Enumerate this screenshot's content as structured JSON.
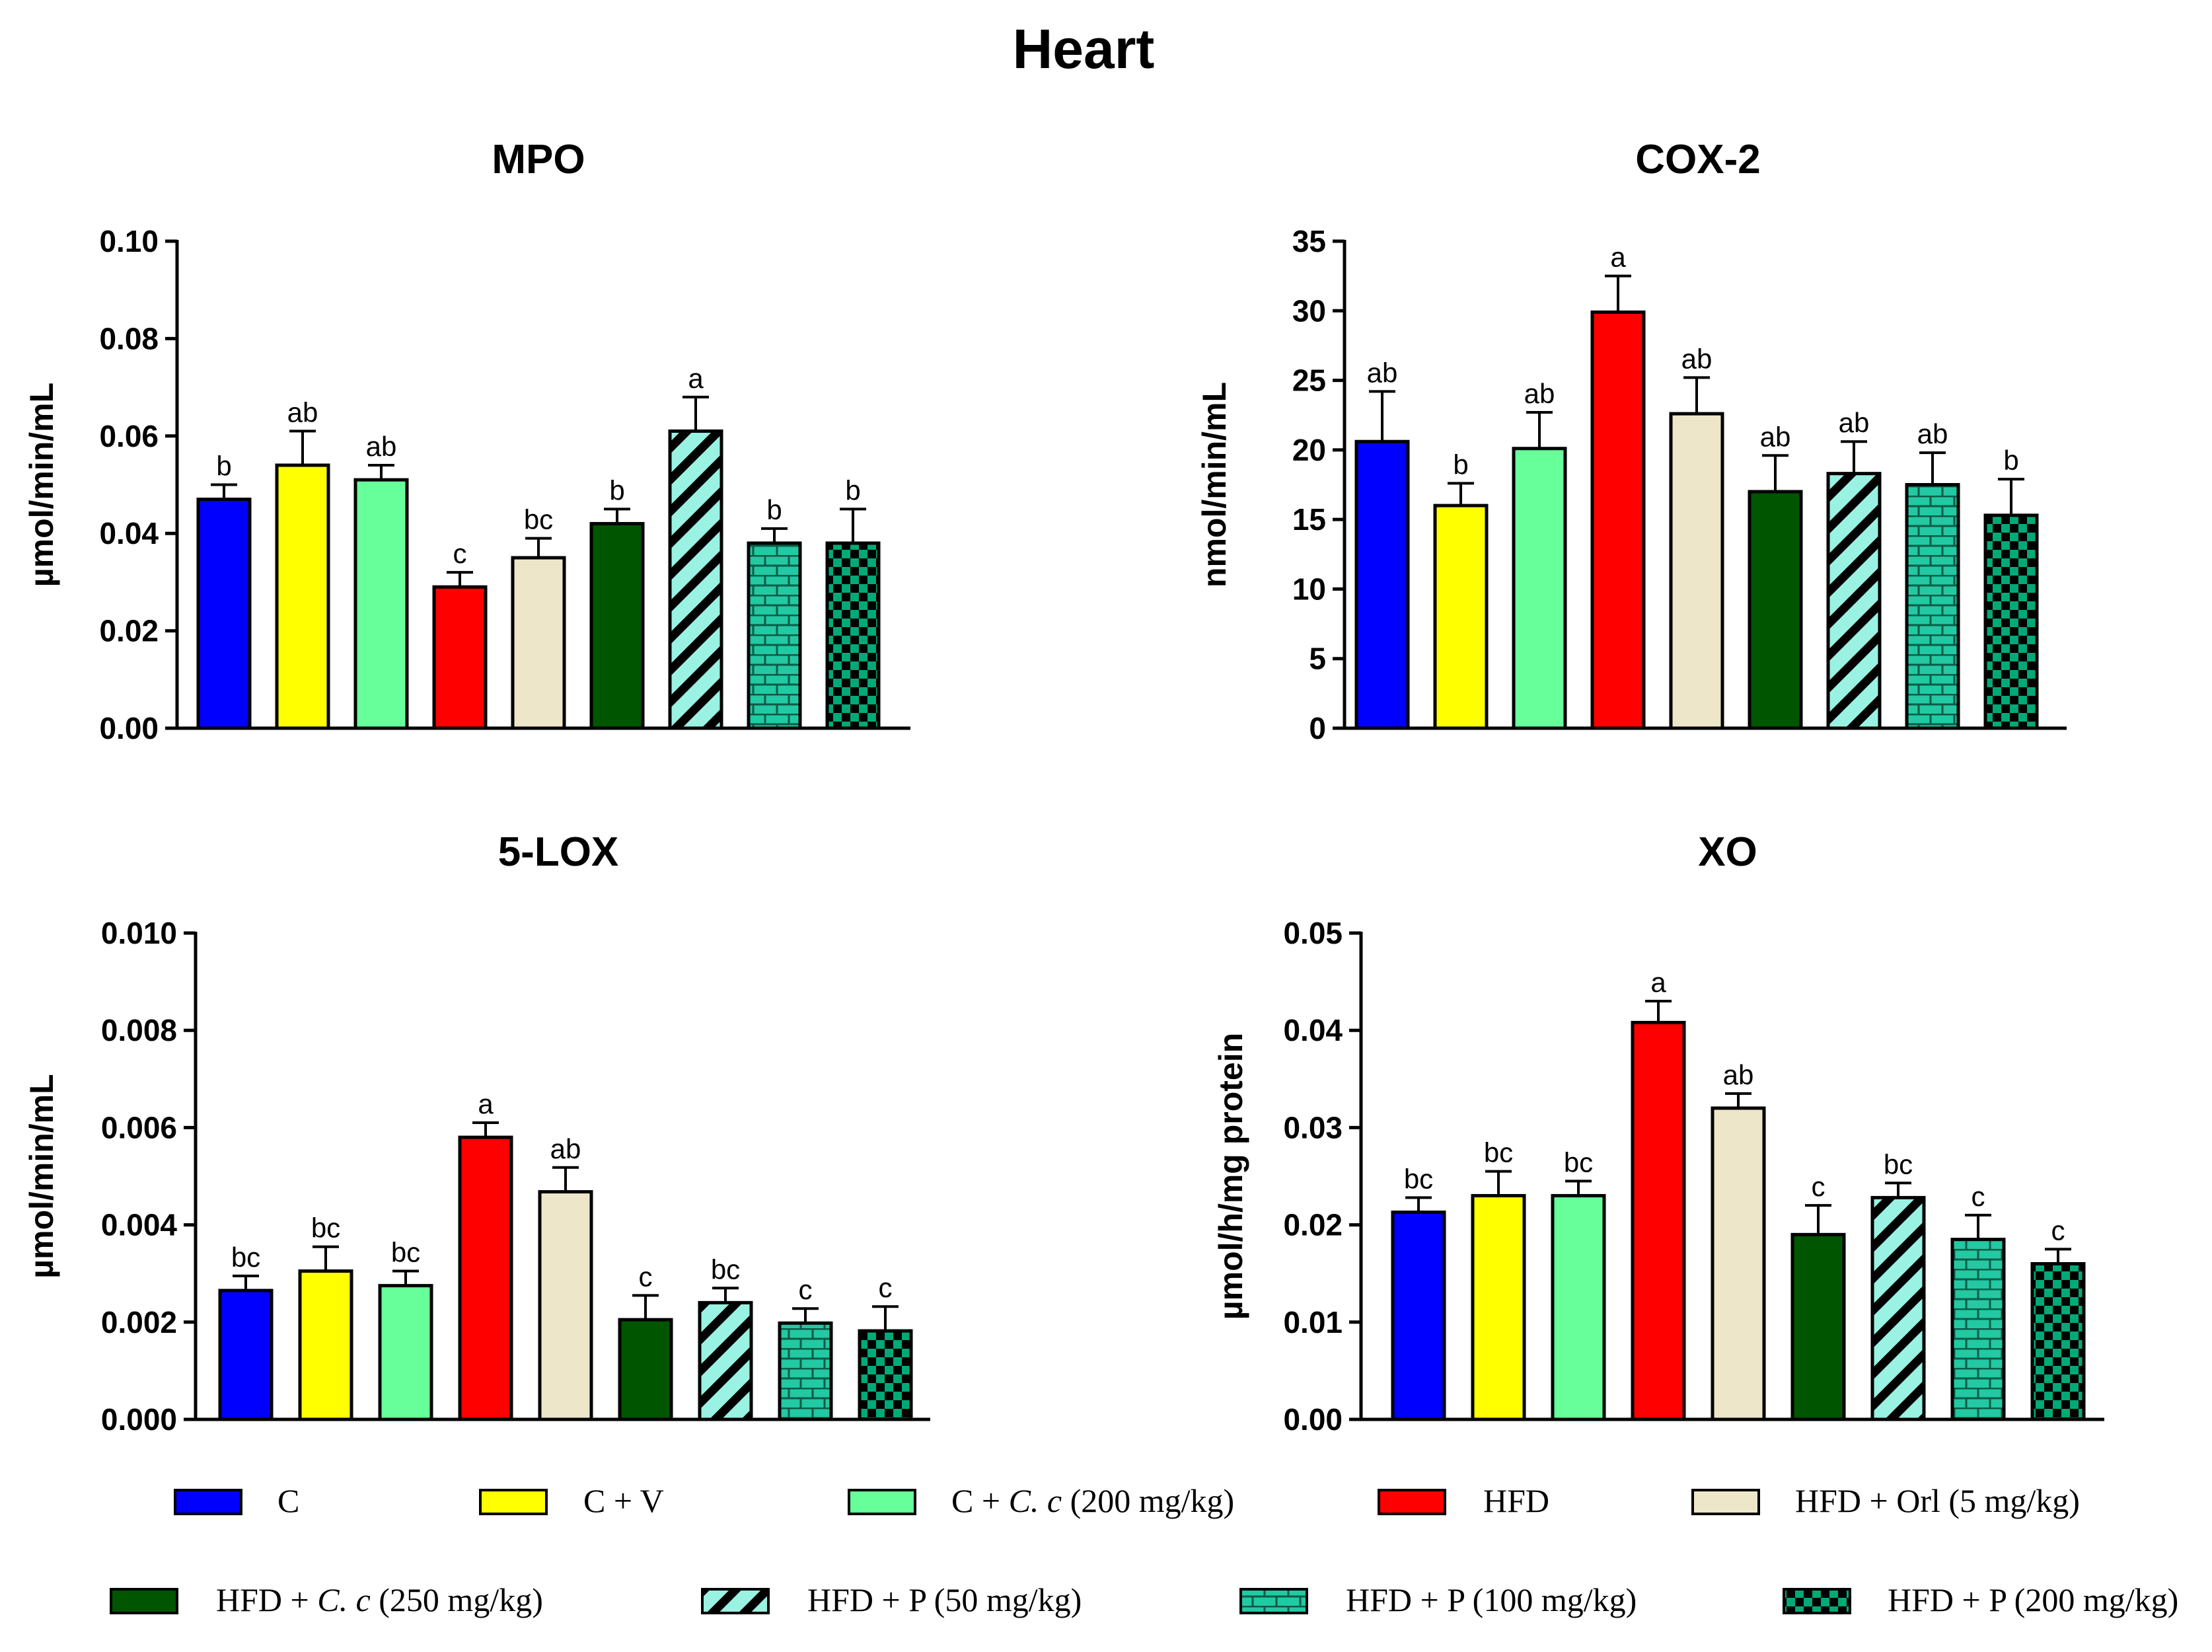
{
  "figure_title": "Heart",
  "colors": {
    "C": "#0000FF",
    "C + V": "#FFFF00",
    "C + C. c (200 mg/kg)": "#66FF99",
    "HFD": "#FF0000",
    "HFD + Orl (5 mg/kg)": "#EEE6C9",
    "HFD + C. c (250 mg/kg)": "#005500",
    "HFD + P (50 mg/kg)": "#99F2E2",
    "HFD + P (100 mg/kg)": "#22C9A2",
    "HFD + P (200 mg/kg)": "#00AA77"
  },
  "legend": [
    {
      "prefix": "C",
      "italic": "",
      "suffix": "",
      "pattern": "solid"
    },
    {
      "prefix": "C + V",
      "italic": "",
      "suffix": "",
      "pattern": "solid"
    },
    {
      "prefix": "C + ",
      "italic": "C. c",
      "suffix": " (200 mg/kg)",
      "pattern": "solid"
    },
    {
      "prefix": "HFD",
      "italic": "",
      "suffix": "",
      "pattern": "solid"
    },
    {
      "prefix": "HFD + Orl (5 mg/kg)",
      "italic": "",
      "suffix": "",
      "pattern": "solid"
    },
    {
      "prefix": "HFD + ",
      "italic": "C. c",
      "suffix": " (250 mg/kg)",
      "pattern": "solid"
    },
    {
      "prefix": "HFD + P (50 mg/kg)",
      "italic": "",
      "suffix": "",
      "pattern": "stripes"
    },
    {
      "prefix": "HFD + P (100 mg/kg)",
      "italic": "",
      "suffix": "",
      "pattern": "bricks"
    },
    {
      "prefix": "HFD + P (200 mg/kg)",
      "italic": "",
      "suffix": "",
      "pattern": "checks"
    }
  ],
  "chart_data": [
    {
      "type": "bar",
      "title": "MPO",
      "ylabel": "µmol/min/mL",
      "ylim": [
        0,
        0.1
      ],
      "yticks": [
        "0.00",
        "0.02",
        "0.04",
        "0.06",
        "0.08",
        "0.10"
      ],
      "categories": [
        "C",
        "C + V",
        "C + C. c (200 mg/kg)",
        "HFD",
        "HFD + Orl (5 mg/kg)",
        "HFD + C. c (250 mg/kg)",
        "HFD + P (50 mg/kg)",
        "HFD + P (100 mg/kg)",
        "HFD + P (200 mg/kg)"
      ],
      "values": [
        0.047,
        0.054,
        0.051,
        0.029,
        0.035,
        0.042,
        0.061,
        0.038,
        0.038
      ],
      "errors": [
        0.003,
        0.007,
        0.003,
        0.003,
        0.004,
        0.003,
        0.007,
        0.003,
        0.007
      ],
      "labels": [
        "b",
        "ab",
        "ab",
        "c",
        "bc",
        "b",
        "a",
        "b",
        "b"
      ]
    },
    {
      "type": "bar",
      "title": "COX-2",
      "ylabel": "nmol/min/mL",
      "ylim": [
        0,
        35
      ],
      "yticks": [
        "0",
        "5",
        "10",
        "15",
        "20",
        "25",
        "30",
        "35"
      ],
      "categories": [
        "C",
        "C + V",
        "C + C. c (200 mg/kg)",
        "HFD",
        "HFD + Orl (5 mg/kg)",
        "HFD + C. c (250 mg/kg)",
        "HFD + P (50 mg/kg)",
        "HFD + P (100 mg/kg)",
        "HFD + P (200 mg/kg)"
      ],
      "values": [
        20.6,
        16.0,
        20.1,
        29.9,
        22.6,
        17.0,
        18.3,
        17.5,
        15.3
      ],
      "errors": [
        3.6,
        1.6,
        2.6,
        2.6,
        2.6,
        2.6,
        2.3,
        2.3,
        2.6
      ],
      "labels": [
        "ab",
        "b",
        "ab",
        "a",
        "ab",
        "ab",
        "ab",
        "ab",
        "b"
      ]
    },
    {
      "type": "bar",
      "title": "5-LOX",
      "ylabel": "µmol/min/mL",
      "ylim": [
        0,
        0.01
      ],
      "yticks": [
        "0.000",
        "0.002",
        "0.004",
        "0.006",
        "0.008",
        "0.010"
      ],
      "categories": [
        "C",
        "C + V",
        "C + C. c (200 mg/kg)",
        "HFD",
        "HFD + Orl (5 mg/kg)",
        "HFD + C. c (250 mg/kg)",
        "HFD + P (50 mg/kg)",
        "HFD + P (100 mg/kg)",
        "HFD + P (200 mg/kg)"
      ],
      "values": [
        0.00265,
        0.00305,
        0.00275,
        0.0058,
        0.00468,
        0.00205,
        0.0024,
        0.00198,
        0.00182
      ],
      "errors": [
        0.0003,
        0.0005,
        0.0003,
        0.0003,
        0.0005,
        0.0005,
        0.0003,
        0.0003,
        0.0005
      ],
      "labels": [
        "bc",
        "bc",
        "bc",
        "a",
        "ab",
        "c",
        "bc",
        "c",
        "c"
      ]
    },
    {
      "type": "bar",
      "title": "XO",
      "ylabel": "µmol/h/mg protein",
      "ylim": [
        0,
        0.05
      ],
      "yticks": [
        "0.00",
        "0.01",
        "0.02",
        "0.03",
        "0.04",
        "0.05"
      ],
      "categories": [
        "C",
        "C + V",
        "C + C. c (200 mg/kg)",
        "HFD",
        "HFD + Orl (5 mg/kg)",
        "HFD + C. c (250 mg/kg)",
        "HFD + P (50 mg/kg)",
        "HFD + P (100 mg/kg)",
        "HFD + P (200 mg/kg)"
      ],
      "values": [
        0.0213,
        0.023,
        0.023,
        0.0408,
        0.032,
        0.019,
        0.0228,
        0.0185,
        0.016
      ],
      "errors": [
        0.0015,
        0.0025,
        0.0015,
        0.0022,
        0.0015,
        0.003,
        0.0015,
        0.0025,
        0.0015
      ],
      "labels": [
        "bc",
        "bc",
        "bc",
        "a",
        "ab",
        "c",
        "bc",
        "c",
        "c"
      ]
    }
  ]
}
